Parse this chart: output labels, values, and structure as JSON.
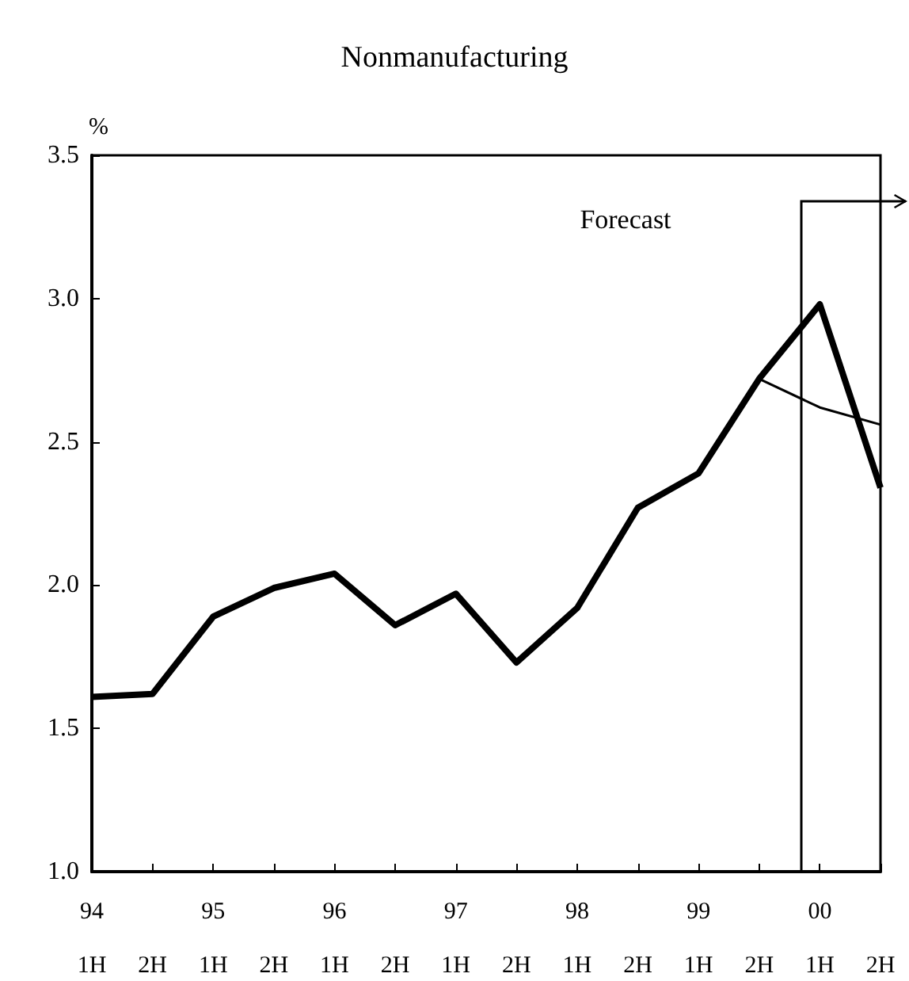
{
  "chart_data": {
    "type": "line",
    "title": "Nonmanufacturing",
    "ylabel": "%",
    "categories": [
      "1H",
      "2H",
      "1H",
      "2H",
      "1H",
      "2H",
      "1H",
      "2H",
      "1H",
      "2H",
      "1H",
      "2H",
      "1H",
      "2H"
    ],
    "series": [
      {
        "color": "#000000",
        "values": [
          1.61,
          1.62,
          1.89,
          1.99,
          2.04,
          1.86,
          1.97,
          1.73,
          1.92,
          2.27,
          2.39,
          2.72,
          2.98,
          2.34
        ]
      },
      {
        "color": "#000000",
        "values": [
          null,
          null,
          null,
          null,
          null,
          null,
          null,
          null,
          null,
          null,
          null,
          2.72,
          2.62,
          2.56
        ]
      }
    ],
    "ylim": [
      1.0,
      3.5
    ],
    "yticks": [
      {
        "value": 1,
        "label": "1.0"
      },
      1.5,
      {
        "value": 2,
        "label": "2.0"
      },
      2.5,
      {
        "value": 3,
        "label": "3.0"
      },
      3.5
    ],
    "annotations": [
      "Forecast",
      "94",
      "95",
      "96",
      "97",
      "98",
      "99",
      "00"
    ],
    "grid": false,
    "marker": "none",
    "line_style": "solid"
  }
}
